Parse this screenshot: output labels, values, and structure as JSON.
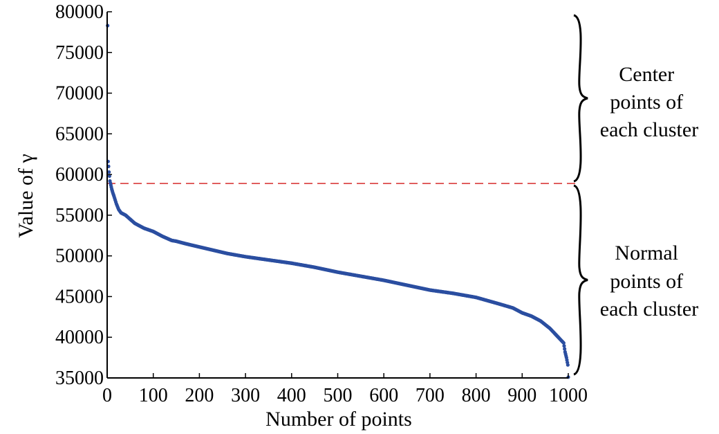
{
  "chart_data": {
    "type": "scatter",
    "xlabel": "Number of points",
    "ylabel": "Value of γ",
    "xlim": [
      0,
      1000
    ],
    "ylim": [
      35000,
      80000
    ],
    "x_ticks": [
      0,
      100,
      200,
      300,
      400,
      500,
      600,
      700,
      800,
      900,
      1000
    ],
    "y_ticks": [
      35000,
      40000,
      45000,
      50000,
      55000,
      60000,
      65000,
      70000,
      75000,
      80000
    ],
    "marker_color": "#2b4ea0",
    "threshold": {
      "y": 58900,
      "color": "#d93a3a",
      "style": "dashed"
    },
    "series": [
      {
        "points_desc": "sorted decay curve",
        "x": [
          1,
          2,
          3,
          4,
          5,
          6,
          8,
          10,
          12,
          15,
          20,
          25,
          30,
          40,
          50,
          60,
          70,
          80,
          100,
          120,
          140,
          150,
          170,
          200,
          230,
          260,
          300,
          350,
          400,
          450,
          500,
          550,
          600,
          650,
          700,
          750,
          800,
          850,
          880,
          900,
          920,
          940,
          960,
          970,
          980,
          990,
          993,
          996,
          999,
          1000
        ],
        "y": [
          78300,
          61600,
          61000,
          60300,
          59800,
          59200,
          58700,
          58200,
          57800,
          57300,
          56400,
          55700,
          55300,
          55000,
          54500,
          54000,
          53700,
          53400,
          53000,
          52400,
          51900,
          51800,
          51500,
          51100,
          50700,
          50300,
          49900,
          49500,
          49100,
          48600,
          48000,
          47500,
          47000,
          46400,
          45800,
          45400,
          44900,
          44100,
          43600,
          43000,
          42600,
          42000,
          41100,
          40500,
          39900,
          39300,
          38200,
          37500,
          36600,
          35100
        ]
      }
    ],
    "annotations": [
      {
        "lines": [
          "Center",
          "points of",
          "each cluster"
        ]
      },
      {
        "lines": [
          "Normal",
          "points of",
          "each cluster"
        ]
      }
    ]
  }
}
